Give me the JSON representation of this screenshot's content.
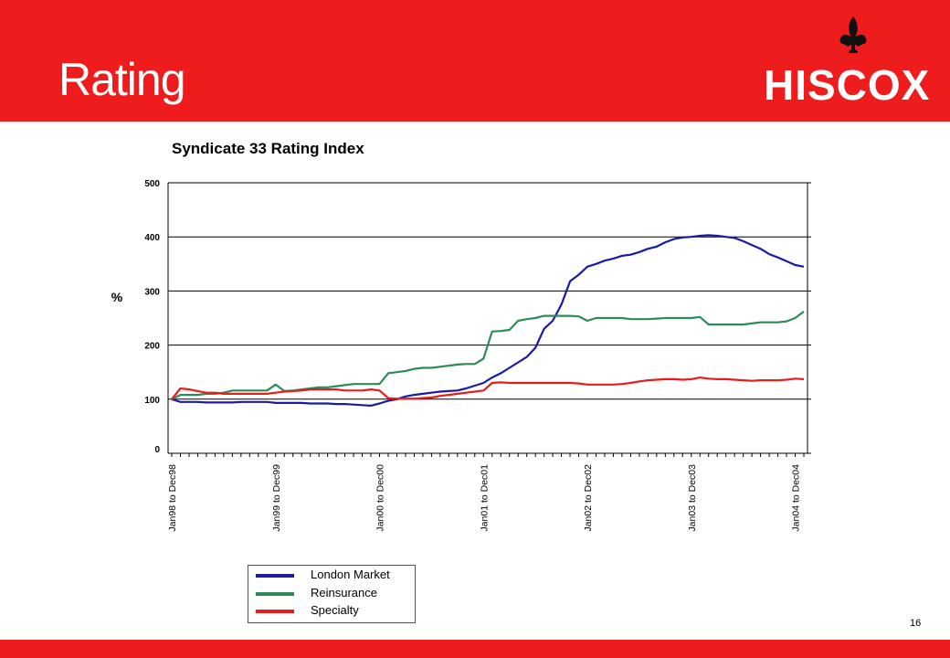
{
  "header": {
    "title": "Rating",
    "logo_text": "HISCOX",
    "logo_icon": "fleur-de-lis-icon",
    "background": "#ee1c1c"
  },
  "footer": {
    "page_number": "16"
  },
  "chart_data": {
    "type": "line",
    "title": "Syndicate 33 Rating Index",
    "ylabel": "%",
    "xlabel": "",
    "ylim": [
      0,
      500
    ],
    "yticks": [
      0,
      100,
      200,
      300,
      400,
      500
    ],
    "grid": true,
    "legend_position": "bottom",
    "x_tick_labels": [
      "Jan98 to Dec98",
      "Jan99 to Dec99",
      "Jan00 to Dec00",
      "Jan01 to Dec01",
      "Jan02 to Dec02",
      "Jan03 to Dec03",
      "Jan04 to Dec04"
    ],
    "x_tick_indices": [
      0,
      12,
      24,
      36,
      48,
      60,
      72
    ],
    "series": [
      {
        "name": "London Market",
        "color": "#1a1aa6",
        "values": [
          100,
          95,
          95,
          95,
          94,
          94,
          94,
          94,
          95,
          95,
          95,
          95,
          93,
          93,
          93,
          93,
          92,
          92,
          92,
          91,
          91,
          90,
          89,
          88,
          92,
          97,
          100,
          105,
          108,
          110,
          112,
          114,
          115,
          116,
          120,
          125,
          130,
          140,
          148,
          158,
          168,
          178,
          195,
          230,
          245,
          275,
          318,
          330,
          345,
          350,
          356,
          360,
          365,
          367,
          372,
          378,
          382,
          390,
          396,
          399,
          400,
          402,
          403,
          402,
          400,
          398,
          392,
          385,
          378,
          368,
          362,
          355,
          348,
          345
        ]
      },
      {
        "name": "Reinsurance",
        "color": "#2e8b57",
        "values": [
          100,
          108,
          108,
          108,
          110,
          110,
          112,
          116,
          116,
          116,
          116,
          116,
          127,
          115,
          116,
          118,
          120,
          122,
          122,
          124,
          126,
          128,
          128,
          128,
          128,
          148,
          150,
          152,
          156,
          158,
          158,
          160,
          162,
          164,
          165,
          165,
          175,
          225,
          226,
          228,
          245,
          248,
          250,
          254,
          254,
          254,
          254,
          253,
          245,
          250,
          250,
          250,
          250,
          248,
          248,
          248,
          249,
          250,
          250,
          250,
          250,
          252,
          238,
          238,
          238,
          238,
          238,
          240,
          242,
          242,
          242,
          244,
          250,
          262
        ]
      },
      {
        "name": "Specialty",
        "color": "#e81c1c",
        "values": [
          100,
          120,
          118,
          115,
          112,
          112,
          110,
          110,
          110,
          110,
          110,
          110,
          112,
          114,
          115,
          116,
          118,
          118,
          118,
          118,
          116,
          116,
          116,
          118,
          116,
          102,
          101,
          101,
          101,
          102,
          103,
          106,
          108,
          110,
          112,
          114,
          116,
          130,
          131,
          130,
          130,
          130,
          130,
          130,
          130,
          130,
          130,
          129,
          127,
          127,
          127,
          127,
          128,
          130,
          133,
          135,
          136,
          137,
          137,
          136,
          137,
          140,
          138,
          137,
          137,
          136,
          135,
          134,
          135,
          135,
          135,
          136,
          138,
          137
        ]
      }
    ]
  }
}
